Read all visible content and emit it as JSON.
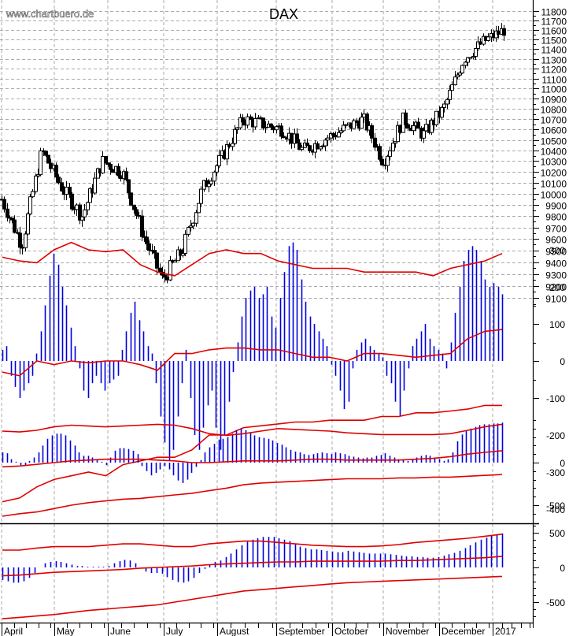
{
  "header": {
    "watermark": "www.chartbuero.de",
    "title": "DAX"
  },
  "colors": {
    "candle_outline": "#000000",
    "histogram": "#0000dd",
    "bands": "#e00000",
    "grid": "#aaaaaa",
    "axis": "#000000"
  },
  "x_axis": {
    "labels": [
      "April",
      "May",
      "June",
      "July",
      "August",
      "September",
      "October",
      "November",
      "December",
      "2017"
    ],
    "positions": [
      2,
      69,
      137,
      208,
      276,
      351,
      422,
      487,
      558,
      626
    ]
  },
  "chart_data": [
    {
      "type": "candlestick",
      "title": "DAX",
      "panel": "price",
      "ylabel": "",
      "scale": "log",
      "ylim": [
        9100,
        11800
      ],
      "y_ticks": [
        11800,
        11700,
        11600,
        11500,
        11400,
        11300,
        11200,
        11100,
        11000,
        10900,
        10800,
        10700,
        10600,
        10500,
        10400,
        10300,
        10200,
        10100,
        10000,
        9900,
        9800,
        9700,
        9600,
        9500,
        9400,
        9300,
        9200,
        9100
      ],
      "x_range": [
        "April 2016",
        "January 2017"
      ],
      "grid": true,
      "approx_close_path": [
        {
          "date": "Apr start",
          "close": 9950
        },
        {
          "date": "Apr mid",
          "close": 9550
        },
        {
          "date": "Apr end",
          "close": 10400
        },
        {
          "date": "May start",
          "close": 10050
        },
        {
          "date": "May mid",
          "close": 9800
        },
        {
          "date": "May end",
          "close": 10300
        },
        {
          "date": "Jun start",
          "close": 10200
        },
        {
          "date": "Jun mid",
          "close": 9650
        },
        {
          "date": "Jun end (low)",
          "close": 9250
        },
        {
          "date": "Jul start",
          "close": 9500
        },
        {
          "date": "Jul mid",
          "close": 10050
        },
        {
          "date": "Jul end",
          "close": 10350
        },
        {
          "date": "Aug start",
          "close": 10700
        },
        {
          "date": "Aug mid",
          "close": 10650
        },
        {
          "date": "Aug end",
          "close": 10600
        },
        {
          "date": "Sep mid",
          "close": 10400
        },
        {
          "date": "Sep end",
          "close": 10500
        },
        {
          "date": "Oct mid",
          "close": 10600
        },
        {
          "date": "Oct end",
          "close": 10700
        },
        {
          "date": "Nov start",
          "close": 10300
        },
        {
          "date": "Nov mid",
          "close": 10700
        },
        {
          "date": "Nov end",
          "close": 10550
        },
        {
          "date": "Dec start",
          "close": 10800
        },
        {
          "date": "Dec mid",
          "close": 11300
        },
        {
          "date": "Dec end",
          "close": 11480
        },
        {
          "date": "Jan start",
          "close": 11600
        }
      ]
    },
    {
      "type": "bar",
      "panel": "oscillator-1",
      "ylim": [
        -450,
        380
      ],
      "y_ticks": [
        300,
        200,
        100,
        0,
        -100,
        -200,
        -300,
        -400
      ],
      "series": [
        {
          "name": "histogram",
          "color": "#0000dd",
          "values": [
            30,
            40,
            -40,
            -70,
            -100,
            -80,
            -60,
            -40,
            20,
            80,
            150,
            230,
            290,
            260,
            200,
            150,
            90,
            40,
            -20,
            -80,
            -100,
            -60,
            -40,
            -60,
            -80,
            -60,
            -50,
            -40,
            30,
            80,
            130,
            160,
            110,
            80,
            40,
            20,
            -60,
            -150,
            -220,
            -270,
            -240,
            -150,
            -60,
            30,
            -100,
            -200,
            -240,
            -180,
            -120,
            -80,
            -180,
            -240,
            -200,
            -110,
            -30,
            50,
            120,
            170,
            190,
            200,
            170,
            180,
            200,
            120,
            90,
            170,
            240,
            310,
            320,
            300,
            220,
            160,
            120,
            100,
            80,
            60,
            40,
            -10,
            -40,
            -80,
            -130,
            -110,
            -20,
            30,
            50,
            60,
            40,
            30,
            20,
            10,
            -40,
            -60,
            -110,
            -150,
            -80,
            -20,
            40,
            60,
            80,
            100,
            60,
            40,
            30,
            20,
            -20,
            50,
            130,
            200,
            270,
            300,
            310,
            300,
            270,
            220,
            200,
            210,
            200,
            180
          ]
        },
        {
          "name": "upper-band",
          "color": "#e00000",
          "values": [
            280,
            270,
            265,
            300,
            320,
            300,
            295,
            300,
            260,
            240,
            230,
            260,
            290,
            300,
            290,
            290,
            270,
            260,
            250,
            250,
            250,
            240,
            240,
            240,
            240,
            230,
            250,
            260,
            270,
            290
          ]
        },
        {
          "name": "mid-band",
          "color": "#e00000",
          "values": [
            -30,
            -40,
            0,
            -10,
            0,
            -5,
            0,
            0,
            -10,
            -25,
            20,
            20,
            30,
            35,
            35,
            30,
            30,
            20,
            10,
            10,
            0,
            20,
            20,
            15,
            10,
            15,
            20,
            60,
            80,
            85
          ]
        },
        {
          "name": "lower-band",
          "color": "#e00000",
          "values": [
            -380,
            -370,
            -340,
            -320,
            -310,
            -300,
            -310,
            -280,
            -270,
            -260,
            -260,
            -240,
            -200,
            -200,
            -180,
            -175,
            -170,
            -165,
            -165,
            -160,
            -160,
            -160,
            -150,
            -150,
            -140,
            -140,
            -135,
            -130,
            -120,
            -120
          ]
        }
      ]
    },
    {
      "type": "bar",
      "panel": "oscillator-2",
      "ylim": [
        -620,
        560
      ],
      "y_ticks": [
        0,
        -500
      ],
      "series": [
        {
          "name": "histogram",
          "color": "#0000dd",
          "values": [
            120,
            110,
            40,
            10,
            -30,
            -30,
            20,
            60,
            120,
            200,
            280,
            320,
            340,
            340,
            320,
            260,
            200,
            120,
            80,
            80,
            60,
            30,
            10,
            -30,
            60,
            140,
            170,
            170,
            160,
            140,
            100,
            -40,
            -100,
            -150,
            -120,
            -80,
            -40,
            -80,
            -150,
            -210,
            -240,
            -200,
            -120,
            -50,
            30,
            120,
            180,
            220,
            270,
            280,
            300,
            340,
            380,
            400,
            380,
            350,
            320,
            300,
            290,
            280,
            260,
            230,
            210,
            180,
            150,
            130,
            120,
            100,
            90,
            100,
            110,
            120,
            110,
            100,
            120,
            110,
            100,
            80,
            70,
            60,
            50,
            60,
            60,
            80,
            90,
            110,
            80,
            60,
            40,
            30,
            20,
            40,
            60,
            80,
            90,
            80,
            60,
            40,
            20,
            40,
            120,
            250,
            330,
            370,
            400,
            420,
            440,
            450,
            450,
            460,
            460,
            470
          ]
        },
        {
          "name": "upper-band",
          "color": "#e00000",
          "values": [
            370,
            360,
            380,
            420,
            440,
            430,
            420,
            430,
            440,
            450,
            440,
            400,
            340,
            320,
            340,
            370,
            400,
            390,
            380,
            370,
            350,
            340,
            330,
            330,
            330,
            330,
            340,
            380,
            420,
            450
          ]
        },
        {
          "name": "mid-band",
          "color": "#e00000",
          "values": [
            -50,
            -40,
            -20,
            0,
            20,
            30,
            40,
            40,
            40,
            30,
            20,
            0,
            0,
            10,
            20,
            20,
            20,
            30,
            40,
            40,
            30,
            30,
            30,
            30,
            40,
            50,
            70,
            100,
            120,
            140
          ]
        },
        {
          "name": "lower-band",
          "color": "#e00000",
          "values": [
            -630,
            -600,
            -580,
            -540,
            -500,
            -470,
            -450,
            -430,
            -420,
            -400,
            -380,
            -360,
            -330,
            -300,
            -260,
            -240,
            -230,
            -220,
            -210,
            -200,
            -190,
            -190,
            -190,
            -180,
            -180,
            -170,
            -170,
            -160,
            -150,
            -140
          ]
        }
      ]
    },
    {
      "type": "bar",
      "panel": "oscillator-3",
      "ylim": [
        -800,
        620
      ],
      "y_ticks": [
        500,
        0,
        -500
      ],
      "series": [
        {
          "name": "histogram",
          "color": "#0000dd",
          "values": [
            -180,
            -200,
            -220,
            -220,
            -200,
            -150,
            -80,
            0,
            60,
            80,
            90,
            80,
            60,
            40,
            20,
            20,
            10,
            10,
            10,
            10,
            20,
            60,
            90,
            110,
            100,
            60,
            0,
            -60,
            -80,
            -80,
            -90,
            -140,
            -180,
            -210,
            -220,
            -200,
            -150,
            -80,
            -20,
            40,
            80,
            100,
            150,
            200,
            260,
            320,
            370,
            400,
            420,
            440,
            440,
            440,
            420,
            400,
            380,
            340,
            300,
            280,
            260,
            260,
            250,
            240,
            230,
            220,
            220,
            240,
            230,
            220,
            210,
            200,
            200,
            200,
            200,
            190,
            180,
            170,
            160,
            160,
            150,
            150,
            140,
            140,
            150,
            170,
            190,
            210,
            240,
            280,
            320,
            360,
            400,
            430,
            460,
            480,
            490
          ]
        },
        {
          "name": "upper-band",
          "color": "#e00000",
          "values": [
            250,
            250,
            280,
            300,
            300,
            300,
            320,
            340,
            340,
            320,
            300,
            300,
            340,
            360,
            380,
            380,
            360,
            340,
            320,
            310,
            300,
            300,
            310,
            330,
            360,
            380,
            400,
            420,
            450,
            480
          ]
        },
        {
          "name": "mid-band",
          "color": "#e00000",
          "values": [
            -120,
            -110,
            -90,
            -70,
            -60,
            -50,
            -40,
            -30,
            -10,
            0,
            10,
            20,
            40,
            50,
            60,
            70,
            80,
            80,
            90,
            90,
            90,
            90,
            90,
            100,
            100,
            110,
            120,
            130,
            140,
            160
          ]
        },
        {
          "name": "lower-band",
          "color": "#e00000",
          "values": [
            -740,
            -720,
            -700,
            -680,
            -650,
            -620,
            -600,
            -580,
            -560,
            -540,
            -500,
            -460,
            -420,
            -380,
            -340,
            -320,
            -300,
            -280,
            -260,
            -240,
            -220,
            -210,
            -200,
            -190,
            -180,
            -170,
            -160,
            -150,
            -140,
            -130
          ]
        }
      ]
    }
  ]
}
